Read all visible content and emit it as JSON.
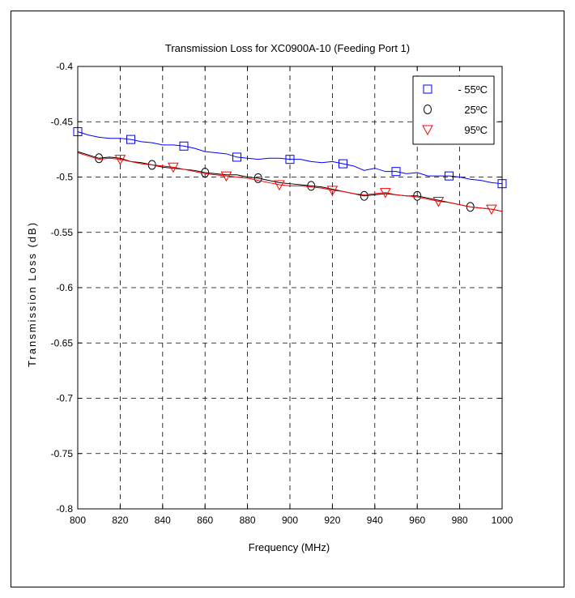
{
  "chart_data": {
    "type": "line",
    "title": "Transmission Loss for XC0900A-10 (Feeding Port 1)",
    "xlabel": "Frequency (MHz)",
    "ylabel": "Transmission Loss (dB)",
    "xlim": [
      800,
      1000
    ],
    "ylim": [
      -0.8,
      -0.4
    ],
    "xticks": [
      800,
      820,
      840,
      860,
      880,
      900,
      920,
      940,
      960,
      980,
      1000
    ],
    "xtick_labels": [
      "800",
      "820",
      "840",
      "860",
      "880",
      "900",
      "920",
      "940",
      "960",
      "980",
      "1000"
    ],
    "yticks": [
      -0.4,
      -0.45,
      -0.5,
      -0.55,
      -0.6,
      -0.65,
      -0.7,
      -0.75,
      -0.8
    ],
    "ytick_labels": [
      "-0.4",
      "-0.45",
      "-0.5",
      "-0.55",
      "-0.6",
      "-0.65",
      "-0.7",
      "-0.75",
      "-0.8"
    ],
    "grid": true,
    "grid_style": "dashed",
    "legend_position": "top-right",
    "series": [
      {
        "name": "- 55ºC",
        "color": "#0000ff",
        "marker": "square",
        "x": [
          800,
          805,
          810,
          815,
          820,
          825,
          830,
          835,
          840,
          845,
          850,
          855,
          860,
          865,
          870,
          875,
          880,
          885,
          890,
          895,
          900,
          905,
          910,
          915,
          920,
          925,
          930,
          935,
          940,
          945,
          950,
          955,
          960,
          965,
          970,
          975,
          980,
          985,
          990,
          995,
          1000
        ],
        "values": [
          -0.459,
          -0.462,
          -0.464,
          -0.465,
          -0.465,
          -0.466,
          -0.468,
          -0.469,
          -0.471,
          -0.471,
          -0.472,
          -0.474,
          -0.477,
          -0.478,
          -0.479,
          -0.482,
          -0.483,
          -0.484,
          -0.483,
          -0.483,
          -0.484,
          -0.484,
          -0.486,
          -0.487,
          -0.486,
          -0.488,
          -0.49,
          -0.494,
          -0.492,
          -0.495,
          -0.495,
          -0.497,
          -0.496,
          -0.499,
          -0.499,
          -0.499,
          -0.5,
          -0.502,
          -0.503,
          -0.505,
          -0.506
        ],
        "marker_x": [
          800,
          825,
          850,
          875,
          900,
          925,
          950,
          975,
          1000
        ]
      },
      {
        "name": "25ºC",
        "color": "#000000",
        "marker": "circle",
        "x": [
          800,
          805,
          810,
          815,
          820,
          825,
          830,
          835,
          840,
          845,
          850,
          855,
          860,
          865,
          870,
          875,
          880,
          885,
          890,
          895,
          900,
          905,
          910,
          915,
          920,
          925,
          930,
          935,
          940,
          945,
          950,
          955,
          960,
          965,
          970,
          975,
          980,
          985,
          990,
          995,
          1000
        ],
        "values": [
          -0.477,
          -0.48,
          -0.483,
          -0.482,
          -0.483,
          -0.486,
          -0.487,
          -0.489,
          -0.491,
          -0.492,
          -0.493,
          -0.494,
          -0.496,
          -0.497,
          -0.498,
          -0.498,
          -0.5,
          -0.501,
          -0.503,
          -0.505,
          -0.506,
          -0.507,
          -0.508,
          -0.509,
          -0.511,
          -0.513,
          -0.515,
          -0.517,
          -0.516,
          -0.515,
          -0.516,
          -0.517,
          -0.517,
          -0.519,
          -0.521,
          -0.523,
          -0.525,
          -0.527,
          -0.528,
          -0.529,
          -0.531
        ],
        "marker_x": [
          810,
          835,
          860,
          885,
          910,
          935,
          960,
          985
        ]
      },
      {
        "name": "95ºC",
        "color": "#ff0000",
        "marker": "triangle-down",
        "x": [
          800,
          805,
          810,
          815,
          820,
          825,
          830,
          835,
          840,
          845,
          850,
          855,
          860,
          865,
          870,
          875,
          880,
          885,
          890,
          895,
          900,
          905,
          910,
          915,
          920,
          925,
          930,
          935,
          940,
          945,
          950,
          955,
          960,
          965,
          970,
          975,
          980,
          985,
          990,
          995,
          1000
        ],
        "values": [
          -0.478,
          -0.481,
          -0.484,
          -0.483,
          -0.484,
          -0.486,
          -0.488,
          -0.489,
          -0.49,
          -0.491,
          -0.493,
          -0.495,
          -0.497,
          -0.498,
          -0.499,
          -0.5,
          -0.501,
          -0.503,
          -0.505,
          -0.507,
          -0.508,
          -0.508,
          -0.509,
          -0.51,
          -0.512,
          -0.513,
          -0.515,
          -0.516,
          -0.515,
          -0.514,
          -0.516,
          -0.517,
          -0.518,
          -0.52,
          -0.522,
          -0.523,
          -0.525,
          -0.527,
          -0.528,
          -0.529,
          -0.531
        ],
        "marker_x": [
          820,
          845,
          870,
          895,
          920,
          945,
          970,
          995
        ]
      }
    ]
  }
}
